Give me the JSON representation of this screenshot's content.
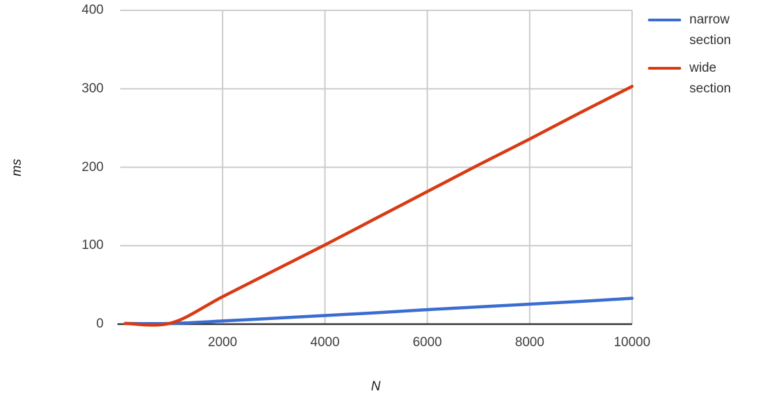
{
  "chart_data": {
    "type": "line",
    "title": "",
    "xlabel": "N",
    "ylabel": "ms",
    "x": [
      100,
      1000,
      2000,
      3000,
      4000,
      5000,
      6000,
      7000,
      8000,
      9000,
      10000
    ],
    "series": [
      {
        "name": "narrow section",
        "color": "#3b6cd1",
        "values": [
          0.1,
          0.7,
          4,
          7.5,
          11,
          14.5,
          18.5,
          22,
          25.5,
          29,
          33
        ]
      },
      {
        "name": "wide section",
        "color": "#d83b14",
        "values": [
          0.2,
          1.5,
          35,
          68,
          101,
          135,
          169,
          203,
          236,
          270,
          303
        ]
      }
    ],
    "xlim": [
      0,
      10000
    ],
    "ylim": [
      0,
      400
    ],
    "x_ticks": [
      2000,
      4000,
      6000,
      8000,
      10000
    ],
    "y_ticks": [
      0,
      100,
      200,
      300,
      400
    ],
    "grid": true,
    "legend_position": "right",
    "grid_color": "#cccccc",
    "axis_line_color": "#333333",
    "tick_label_color": "#3d3d3d"
  }
}
